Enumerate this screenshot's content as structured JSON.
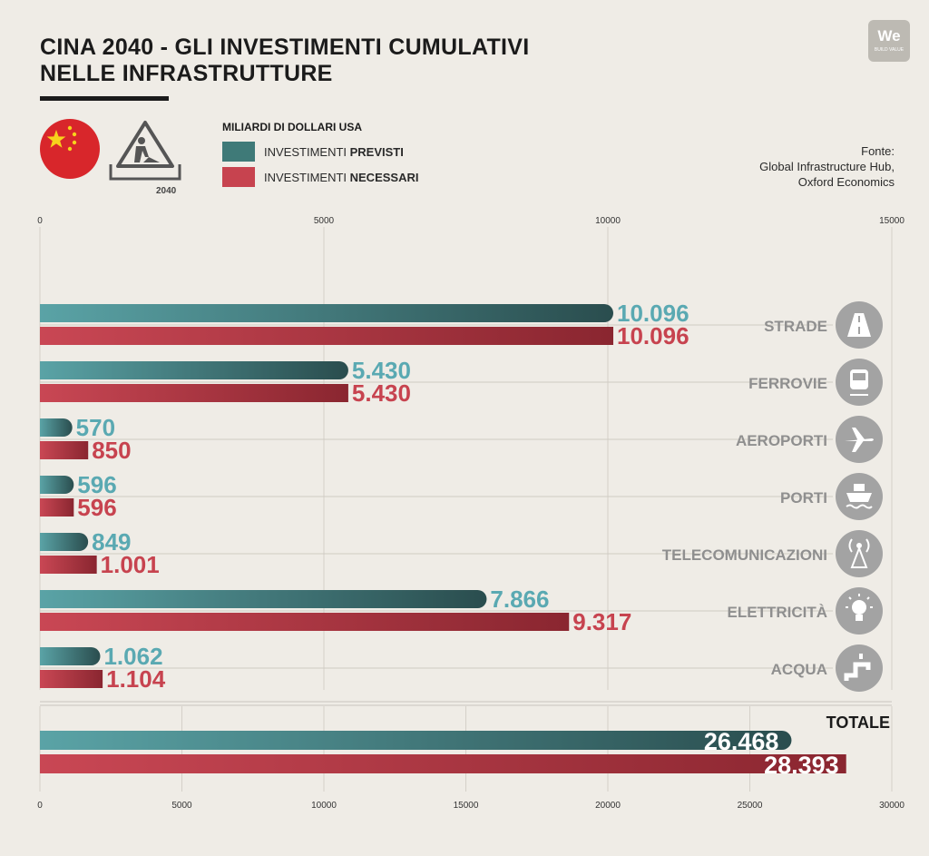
{
  "header": {
    "title_line1": "CINA 2040 - GLI INVESTIMENTI CUMULATIVI",
    "title_line2": "NELLE INFRASTRUTTURE",
    "logo_text": "We",
    "logo_subtext": "BUILD VALUE",
    "site_year": "2040",
    "units": "MILIARDI DI DOLLARI USA",
    "legend": [
      {
        "prefix": "INVESTIMENTI ",
        "bold": "PREVISTI",
        "color": "#5aa9b2"
      },
      {
        "prefix": "INVESTIMENTI ",
        "bold": "NECESSARI",
        "color": "#c7434f"
      }
    ],
    "source": [
      "Fonte:",
      "Global Infrastructure Hub,",
      "Oxford Economics"
    ]
  },
  "colors": {
    "previsti_bar": "#3f7a78",
    "previsti_label": "#5aa9b2",
    "necessari_bar": "#b8313e",
    "necessari_label": "#c7434f",
    "category_label": "#8f8f8f",
    "icon_circle": "#a3a3a3"
  },
  "chart_data": [
    {
      "type": "bar",
      "orientation": "horizontal",
      "categories": [
        "STRADE",
        "FERROVIE",
        "AEROPORTI",
        "PORTI",
        "TELECOMUNICAZIONI",
        "ELETTRICITÀ",
        "ACQUA"
      ],
      "category_icons": [
        "road-icon",
        "train-icon",
        "airplane-icon",
        "ship-icon",
        "antenna-icon",
        "lightbulb-icon",
        "faucet-icon"
      ],
      "series": [
        {
          "name": "INVESTIMENTI PREVISTI",
          "values": [
            10096,
            5430,
            570,
            596,
            849,
            7866,
            1062
          ],
          "labels": [
            "10.096",
            "5.430",
            "570",
            "596",
            "849",
            "7.866",
            "1.062"
          ]
        },
        {
          "name": "INVESTIMENTI NECESSARI",
          "values": [
            10096,
            5430,
            850,
            596,
            1001,
            9317,
            1104
          ],
          "labels": [
            "10.096",
            "5.430",
            "850",
            "596",
            "1.001",
            "9.317",
            "1.104"
          ]
        }
      ],
      "xlim": [
        0,
        15000
      ],
      "xticks": [
        0,
        5000,
        10000,
        15000
      ],
      "xtick_labels": [
        "0",
        "5000",
        "10000",
        "15000"
      ],
      "axis_position": "top",
      "grid": true
    },
    {
      "type": "bar",
      "orientation": "horizontal",
      "title": "TOTALE",
      "series": [
        {
          "name": "INVESTIMENTI PREVISTI",
          "values": [
            26468
          ],
          "labels": [
            "26.468"
          ]
        },
        {
          "name": "INVESTIMENTI NECESSARI",
          "values": [
            28393
          ],
          "labels": [
            "28.393"
          ]
        }
      ],
      "xlim": [
        0,
        30000
      ],
      "xticks": [
        0,
        5000,
        10000,
        15000,
        20000,
        25000,
        30000
      ],
      "xtick_labels": [
        "0",
        "5000",
        "10000",
        "15000",
        "20000",
        "25000",
        "30000"
      ],
      "axis_position": "bottom",
      "grid": true
    }
  ]
}
